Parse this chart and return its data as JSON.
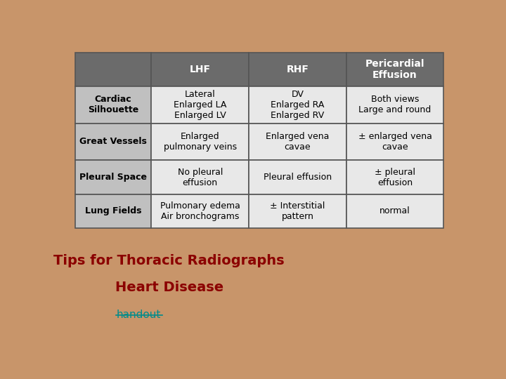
{
  "background_color": "#C8956A",
  "table": {
    "header_bg": "#6B6B6B",
    "header_text_color": "#FFFFFF",
    "row_label_bg": "#C0C0C0",
    "row_label_text_color": "#000000",
    "cell_bg": "#E8E8E8",
    "cell_text_color": "#000000",
    "border_color": "#555555",
    "cols": [
      "LHF",
      "RHF",
      "Pericardial\nEffusion"
    ],
    "rows": [
      {
        "label": "Cardiac\nSilhouette",
        "cells": [
          "Lateral\nEnlarged LA\nEnlarged LV",
          "DV\nEnlarged RA\nEnlarged RV",
          "Both views\nLarge and round"
        ]
      },
      {
        "label": "Great Vessels",
        "cells": [
          "Enlarged\npulmonary veins",
          "Enlarged vena\ncavae",
          "± enlarged vena\ncavae"
        ]
      },
      {
        "label": "Pleural Space",
        "cells": [
          "No pleural\neffusion",
          "Pleural effusion",
          "± pleural\neffusion"
        ]
      },
      {
        "label": "Lung Fields",
        "cells": [
          "Pulmonary edema\nAir bronchograms",
          "± Interstitial\npattern",
          "normal"
        ]
      }
    ]
  },
  "title_line1": "Tips for Thoracic Radiographs",
  "title_line2": "Heart Disease",
  "title_color": "#8B0000",
  "link_text": "handout",
  "link_color": "#008B8B"
}
